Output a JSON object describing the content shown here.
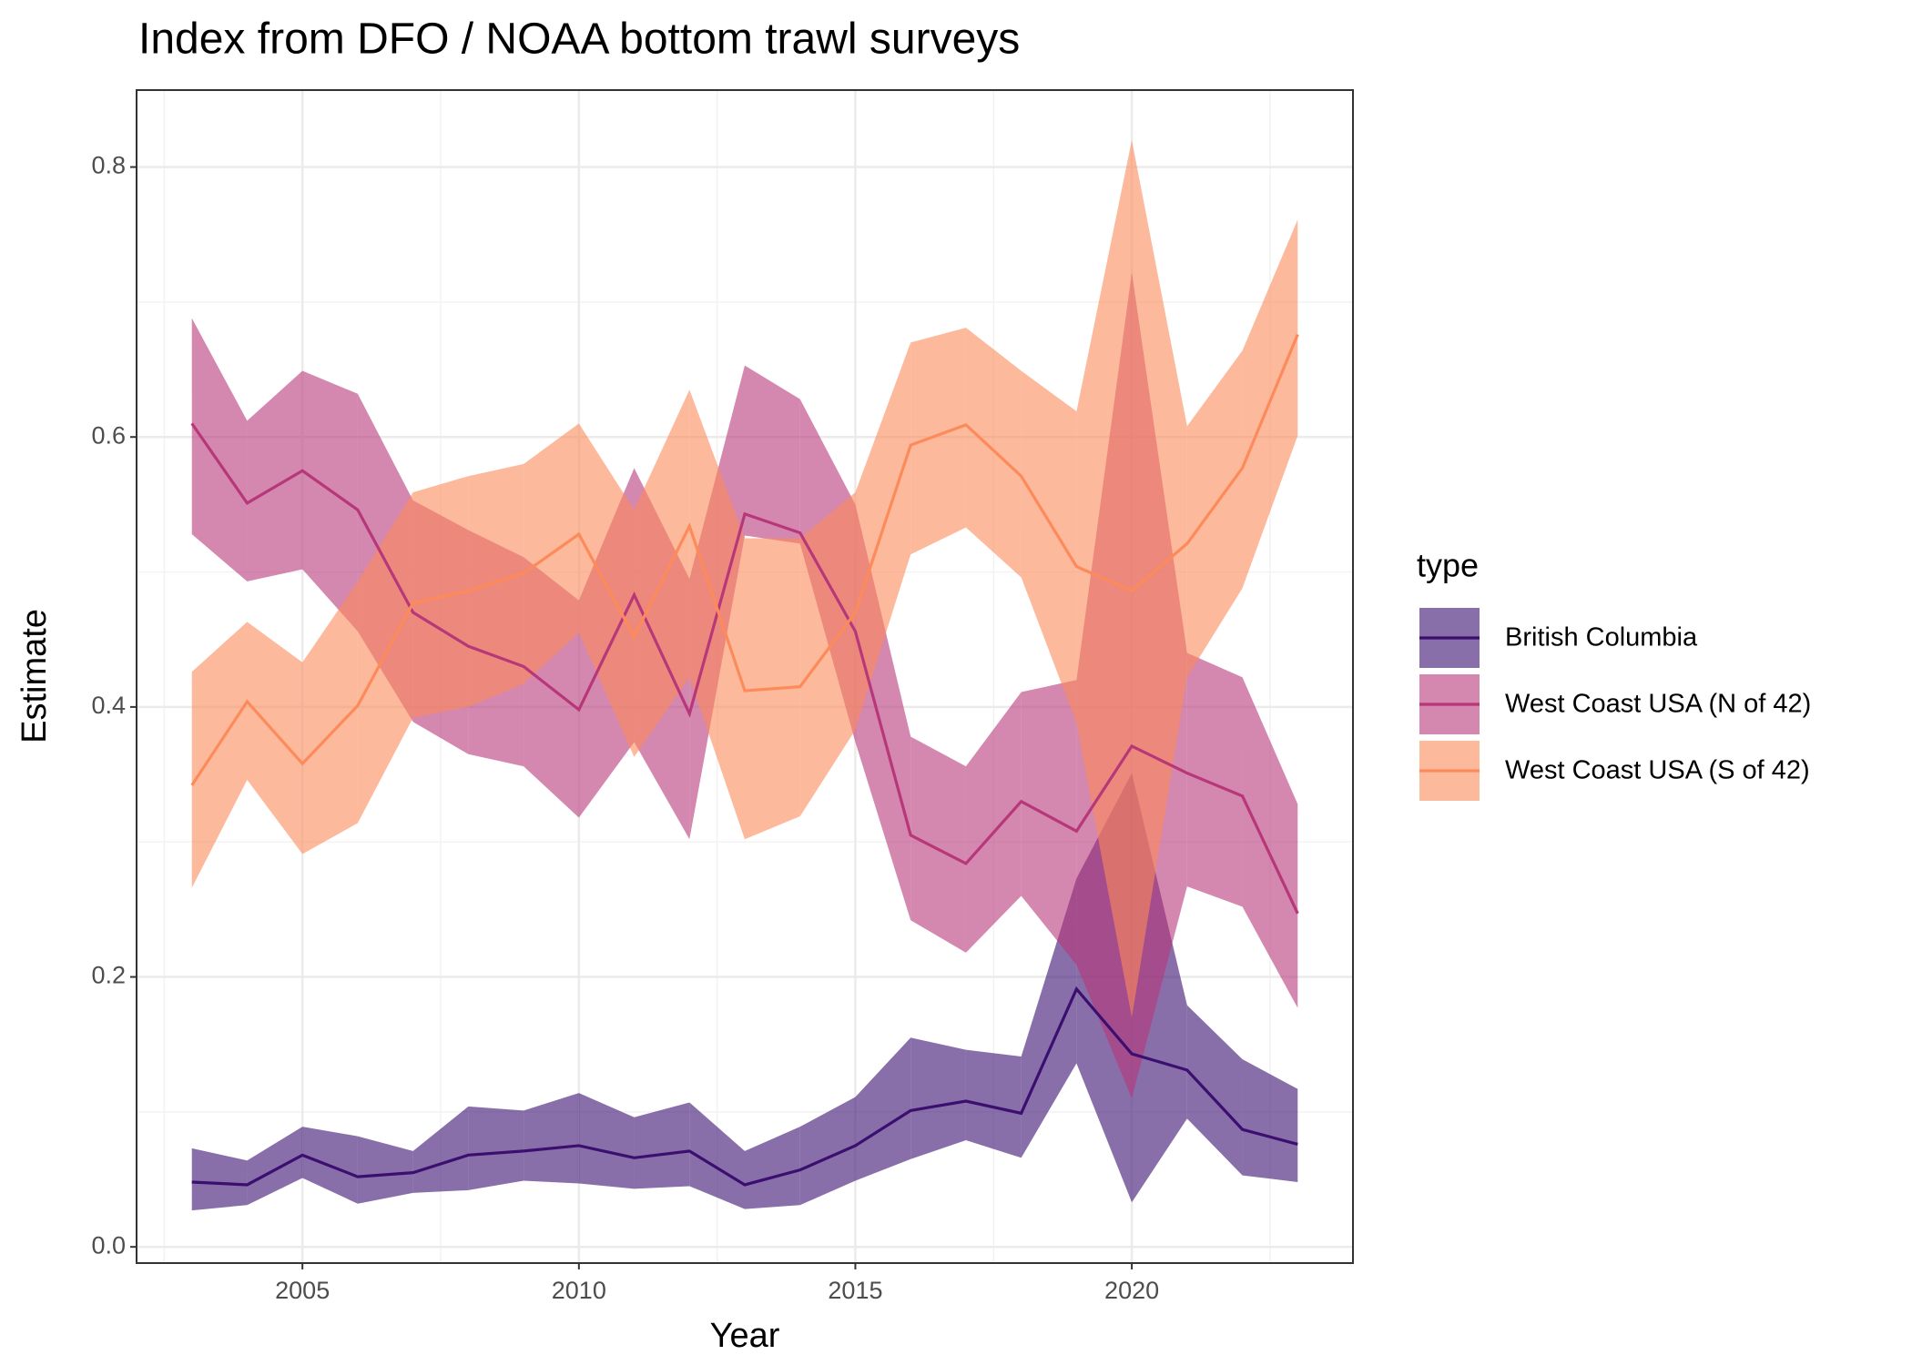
{
  "chart_data": {
    "type": "line",
    "title": "Index from DFO / NOAA bottom trawl surveys",
    "x_label": "Year",
    "y_label": "Estimate",
    "legend_title": "type",
    "x": [
      2003,
      2004,
      2005,
      2006,
      2007,
      2008,
      2009,
      2010,
      2011,
      2012,
      2013,
      2014,
      2015,
      2016,
      2017,
      2018,
      2019,
      2020,
      2021,
      2022,
      2023
    ],
    "xlim": [
      2002,
      2024
    ],
    "xticks": [
      2005,
      2010,
      2015,
      2020
    ],
    "ylim": [
      -0.012,
      0.857
    ],
    "yticks": [
      {
        "value": 0,
        "label": "0.0"
      },
      0.2,
      0.4,
      0.6,
      0.8
    ],
    "grid": true,
    "legend": "right",
    "series": [
      {
        "name": "British Columbia",
        "color": "#3b0f70",
        "values": [
          0.048,
          0.046,
          0.068,
          0.052,
          0.055,
          0.068,
          0.071,
          0.075,
          0.066,
          0.071,
          0.046,
          0.057,
          0.075,
          0.101,
          0.108,
          0.099,
          0.191,
          0.143,
          0.131,
          0.087,
          0.076
        ],
        "lower": [
          0.027,
          0.031,
          0.051,
          0.032,
          0.04,
          0.042,
          0.049,
          0.047,
          0.043,
          0.045,
          0.028,
          0.031,
          0.049,
          0.065,
          0.079,
          0.066,
          0.136,
          0.033,
          0.095,
          0.053,
          0.048
        ],
        "upper": [
          0.073,
          0.064,
          0.089,
          0.082,
          0.071,
          0.104,
          0.101,
          0.114,
          0.096,
          0.107,
          0.071,
          0.089,
          0.111,
          0.155,
          0.146,
          0.141,
          0.273,
          0.351,
          0.179,
          0.139,
          0.117
        ]
      },
      {
        "name": "West Coast USA (N of 42)",
        "color": "#b73779",
        "values": [
          0.61,
          0.551,
          0.575,
          0.546,
          0.47,
          0.445,
          0.43,
          0.398,
          0.483,
          0.395,
          0.543,
          0.529,
          0.456,
          0.305,
          0.284,
          0.33,
          0.308,
          0.371,
          0.351,
          0.334,
          0.247
        ],
        "lower": [
          0.528,
          0.493,
          0.502,
          0.456,
          0.389,
          0.365,
          0.356,
          0.318,
          0.374,
          0.302,
          0.527,
          0.521,
          0.374,
          0.242,
          0.218,
          0.26,
          0.209,
          0.11,
          0.267,
          0.252,
          0.177
        ],
        "upper": [
          0.688,
          0.612,
          0.649,
          0.632,
          0.553,
          0.531,
          0.511,
          0.479,
          0.577,
          0.495,
          0.653,
          0.628,
          0.55,
          0.378,
          0.356,
          0.411,
          0.42,
          0.722,
          0.44,
          0.422,
          0.328
        ]
      },
      {
        "name": "West Coast USA (S of 42)",
        "color": "#fc8a5a",
        "values": [
          0.342,
          0.404,
          0.358,
          0.401,
          0.477,
          0.486,
          0.499,
          0.528,
          0.452,
          0.534,
          0.412,
          0.415,
          0.47,
          0.594,
          0.609,
          0.571,
          0.504,
          0.486,
          0.521,
          0.577,
          0.676
        ],
        "lower": [
          0.266,
          0.346,
          0.291,
          0.314,
          0.392,
          0.4,
          0.417,
          0.455,
          0.363,
          0.422,
          0.302,
          0.319,
          0.383,
          0.513,
          0.533,
          0.496,
          0.388,
          0.17,
          0.422,
          0.488,
          0.601
        ],
        "upper": [
          0.426,
          0.463,
          0.433,
          0.493,
          0.559,
          0.571,
          0.58,
          0.61,
          0.546,
          0.635,
          0.525,
          0.525,
          0.559,
          0.67,
          0.681,
          0.649,
          0.619,
          0.82,
          0.608,
          0.664,
          0.761
        ]
      }
    ]
  }
}
